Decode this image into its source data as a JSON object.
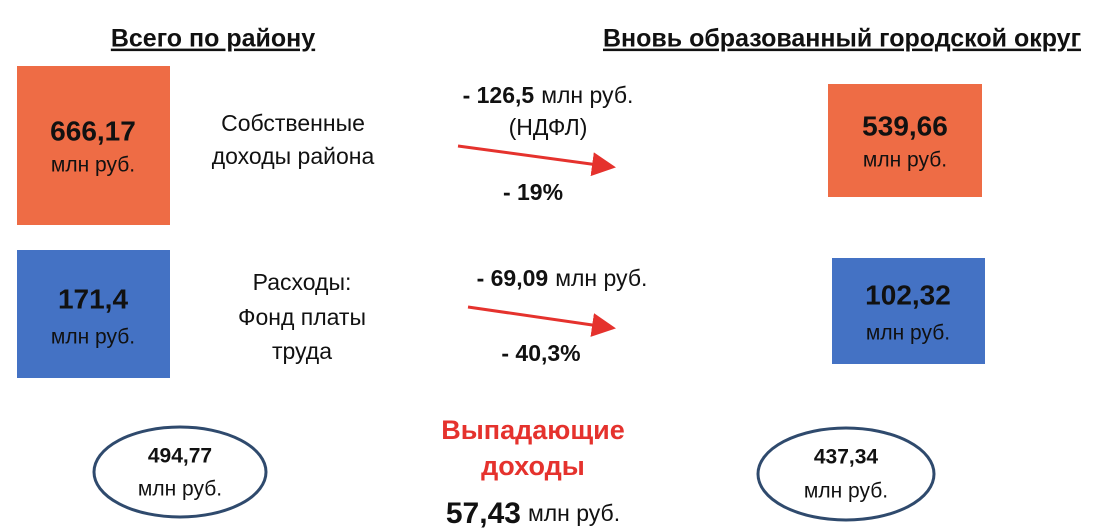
{
  "headers": {
    "left": "Всего по району",
    "right": "Вновь образованный городской округ"
  },
  "rows": [
    {
      "left_value": "666,17",
      "left_unit": "млн руб.",
      "label": [
        "Собственные",
        "доходы района"
      ],
      "change_amount": "- 126,5",
      "change_unit": "млн руб.",
      "change_note": "(НДФЛ)",
      "change_percent": "- 19%",
      "right_value": "539,66",
      "right_unit": "млн руб."
    },
    {
      "left_value": "171,4",
      "left_unit": "млн руб.",
      "label": [
        "Расходы:",
        "Фонд платы",
        "труда"
      ],
      "change_amount": "- 69,09",
      "change_unit": "млн руб.",
      "change_percent": "- 40,3%",
      "right_value": "102,32",
      "right_unit": "млн руб."
    }
  ],
  "totals": {
    "left": {
      "value": "494,77",
      "unit": "млн руб."
    },
    "right": {
      "value": "437,34",
      "unit": "млн руб."
    },
    "shortfall": {
      "title": [
        "Выпадающие",
        "доходы"
      ],
      "value": "57,43",
      "unit": "млн руб."
    }
  }
}
